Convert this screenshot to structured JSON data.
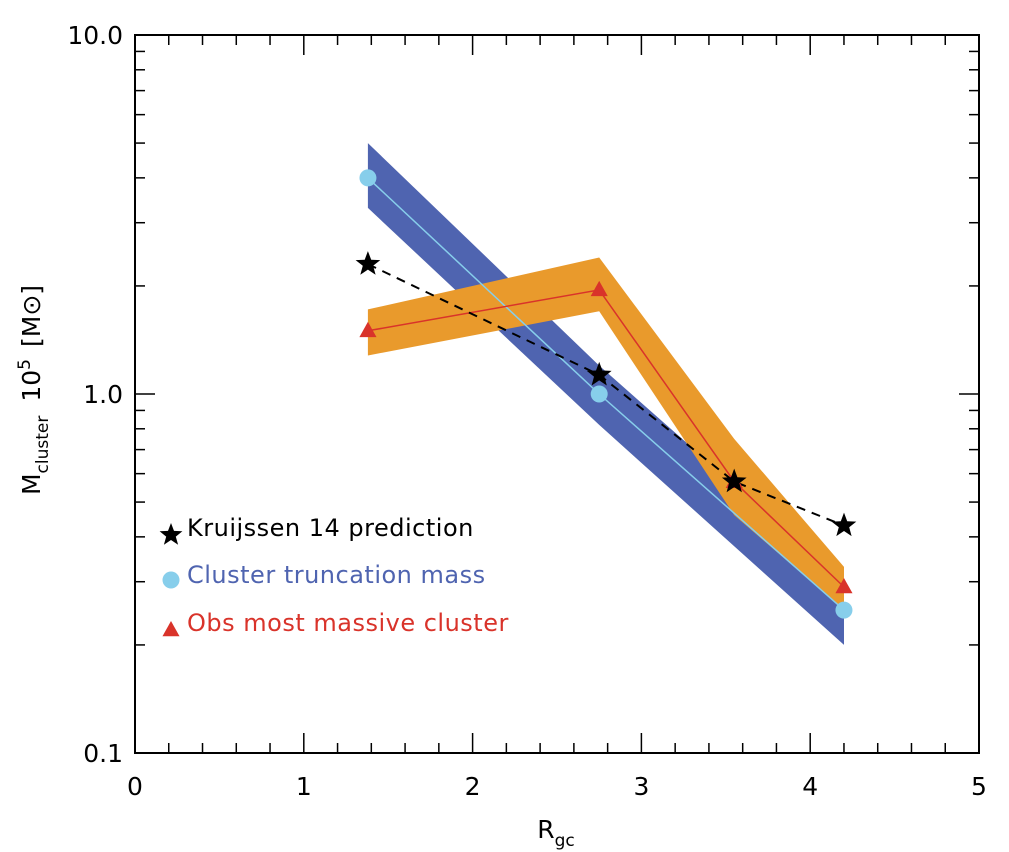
{
  "chart_data": {
    "type": "line",
    "xlabel": {
      "main": "R",
      "sub": "gc"
    },
    "ylabel": {
      "main": "M",
      "sub": "cluster",
      "mid": "10",
      "sup": "5",
      "unit": "[M⊙]"
    },
    "xlim": [
      0,
      5
    ],
    "ylim": [
      0.1,
      10.0
    ],
    "yscale": "log",
    "x_ticks": [
      0,
      1,
      2,
      3,
      4,
      5
    ],
    "x_tick_labels": [
      "0",
      "1",
      "2",
      "3",
      "4",
      "5"
    ],
    "y_ticks": [
      0.1,
      1.0,
      10.0
    ],
    "y_tick_labels": [
      "0.1",
      "1.0",
      "10.0"
    ],
    "grid": false,
    "legend_position": "lower-left",
    "series": [
      {
        "name": "Kruijssen 14 prediction",
        "marker": "star",
        "line": "dashed",
        "color": "#000000",
        "x": [
          1.38,
          2.75,
          3.55,
          4.2
        ],
        "y": [
          2.3,
          1.13,
          0.57,
          0.43
        ]
      },
      {
        "name": "Cluster truncation mass",
        "marker": "circle",
        "line": "solid",
        "color": "#87ceeb",
        "band_color": "#4f64b0",
        "x": [
          1.38,
          2.75,
          4.2
        ],
        "y": [
          4.0,
          1.0,
          0.25
        ],
        "band_upper": [
          5.0,
          1.2,
          0.3
        ],
        "band_lower": [
          3.3,
          0.82,
          0.2
        ]
      },
      {
        "name": "Obs most massive cluster",
        "marker": "triangle",
        "line": "solid",
        "color": "#d9332a",
        "band_color": "#e99a2c",
        "x": [
          1.38,
          2.75,
          3.55,
          4.2
        ],
        "y": [
          1.5,
          1.95,
          0.57,
          0.29
        ],
        "band_upper": [
          1.72,
          2.4,
          0.75,
          0.33
        ],
        "band_lower": [
          1.28,
          1.7,
          0.46,
          0.25
        ]
      }
    ]
  }
}
